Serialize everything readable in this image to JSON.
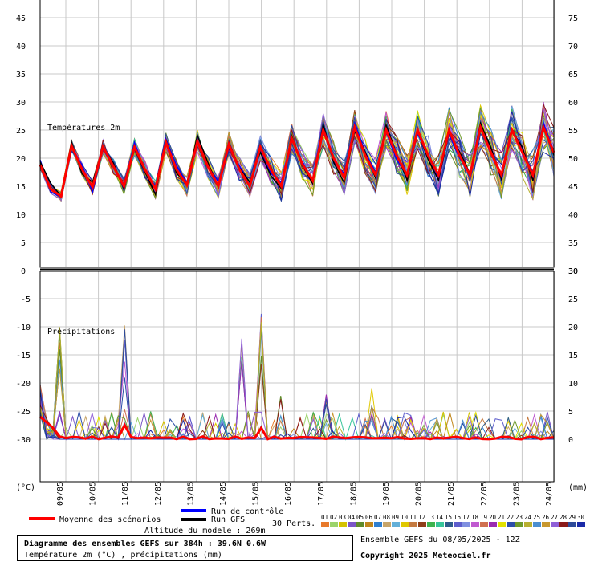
{
  "chart_data": [
    {
      "type": "line",
      "title": "Températures 2m",
      "y_left_ticks": [
        0,
        5,
        10,
        15,
        20,
        25,
        30,
        35,
        40,
        45
      ],
      "y_right_ticks": [
        30,
        35,
        40,
        45,
        50,
        55,
        60,
        65,
        70,
        75
      ],
      "ylim": [
        0,
        47.5
      ],
      "y_unit": "(°C)",
      "mean_series": {
        "name": "Moyenne des scénarios",
        "values": [
          18.8,
          14.5,
          13.2,
          22.2,
          18.0,
          14.8,
          22.0,
          18.5,
          15.0,
          22.0,
          18.0,
          14.5,
          22.8,
          18.0,
          15.2,
          23.0,
          18.5,
          15.0,
          22.5,
          18.0,
          15.0,
          22.0,
          18.0,
          15.0,
          23.5,
          19.0,
          16.0,
          25.0,
          20.0,
          16.5,
          25.5,
          20.5,
          17.0,
          25.0,
          20.5,
          17.0,
          25.0,
          20.5,
          17.0,
          25.0,
          20.5,
          17.0,
          25.5,
          21.0,
          17.0,
          25.0,
          21.0,
          17.0,
          25.5,
          21.0
        ]
      }
    },
    {
      "type": "line",
      "title": "Précipitations",
      "y_left_ticks": [
        -30,
        -25,
        -20,
        -15,
        -10,
        -5
      ],
      "y_right_ticks": [
        0,
        5,
        10,
        15,
        20,
        25,
        30
      ],
      "y_unit": "(mm)",
      "note": "left scale mirrors the temperature axis (-30 = 0 mm)"
    }
  ],
  "x_labels": [
    "09/05",
    "10/05",
    "11/05",
    "12/05",
    "13/05",
    "14/05",
    "15/05",
    "16/05",
    "17/05",
    "18/05",
    "19/05",
    "20/05",
    "21/05",
    "22/05",
    "23/05",
    "24/05"
  ],
  "legend": {
    "mean_label": "Moyenne des scénarios",
    "control_label": "Run de contrôle",
    "gfs_label": "Run GFS",
    "perts_label": "30 Perts.",
    "altitude": "Altitude du modele : 269m",
    "member_numbers": [
      "01",
      "02",
      "03",
      "04",
      "05",
      "06",
      "07",
      "08",
      "09",
      "10",
      "11",
      "12",
      "13",
      "14",
      "15",
      "16",
      "17",
      "18",
      "19",
      "20",
      "21",
      "22",
      "23",
      "24",
      "25",
      "26",
      "27",
      "28",
      "29",
      "30"
    ],
    "member_colors": [
      "#e87a2b",
      "#9bd36b",
      "#d4c200",
      "#7b55c6",
      "#5f8a2a",
      "#c0851a",
      "#2f7fd0",
      "#c7a56a",
      "#64b0d8",
      "#e0c800",
      "#c57a40",
      "#8e3e18",
      "#3db34e",
      "#36c59a",
      "#2c5a8a",
      "#5d5dcc",
      "#8090e0",
      "#c05ad0",
      "#d07050",
      "#9a2ab0",
      "#e2e200",
      "#2c4ea8",
      "#6e9a2a",
      "#b8b030",
      "#4a8ed0",
      "#c89830",
      "#9060d8",
      "#8a1a1a",
      "#2c4a9a",
      "#1a2aa8"
    ]
  },
  "colors": {
    "mean": "#ff0000",
    "control": "#0000ff",
    "gfs": "#000000"
  },
  "footer": {
    "line1": "Diagramme des ensembles GEFS sur 384h : 39.6N 0.6W",
    "line2": "Température 2m (°C) , précipitations (mm)",
    "right1": "Ensemble GEFS du 08/05/2025 - 12Z",
    "right2": "Copyright 2025 Meteociel.fr"
  }
}
